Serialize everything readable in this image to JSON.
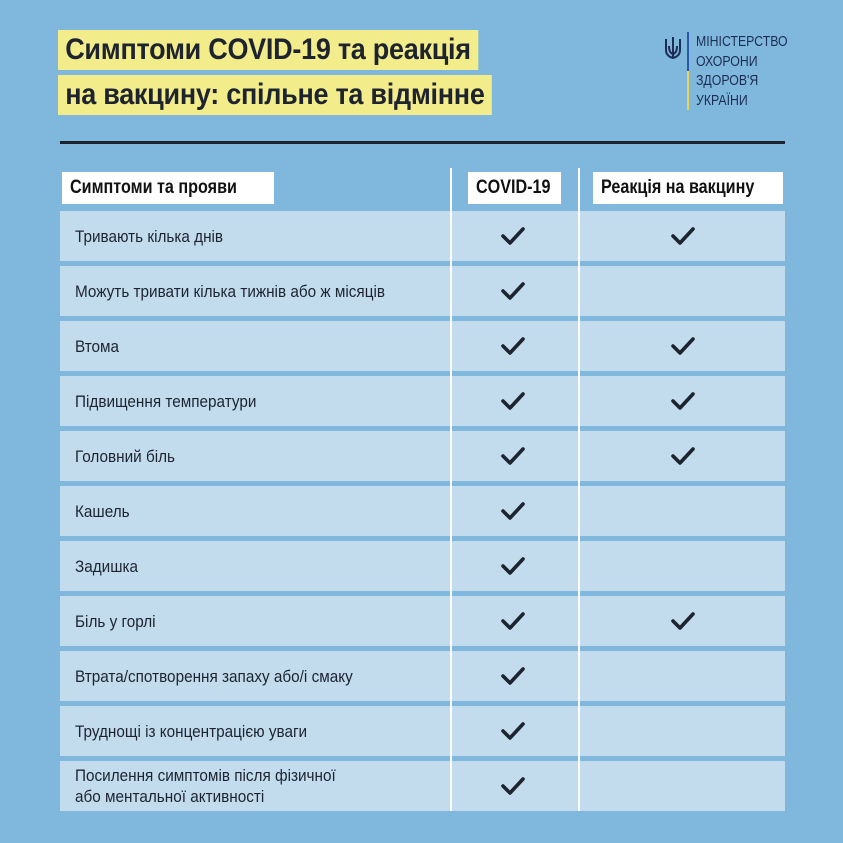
{
  "title": {
    "line1": "Симптоми COVID-19 та реакція",
    "line2": "на вакцину: спільне та відмінне"
  },
  "logo": {
    "lines": [
      "МІНІСТЕРСТВО",
      "ОХОРОНИ",
      "ЗДОРОВ'Я",
      "УКРАЇНИ"
    ],
    "icon": "trident-icon"
  },
  "table": {
    "headers": [
      "Симптоми та прояви",
      "COVID-19",
      "Реакція на вакцину"
    ],
    "rows": [
      {
        "label": "Тривають кілька днів",
        "covid": true,
        "vaccine": true
      },
      {
        "label": "Можуть тривати кілька тижнів або ж місяців",
        "covid": true,
        "vaccine": false
      },
      {
        "label": "Втома",
        "covid": true,
        "vaccine": true
      },
      {
        "label": "Підвищення температури",
        "covid": true,
        "vaccine": true
      },
      {
        "label": "Головний біль",
        "covid": true,
        "vaccine": true
      },
      {
        "label": "Кашель",
        "covid": true,
        "vaccine": false
      },
      {
        "label": "Задишка",
        "covid": true,
        "vaccine": false
      },
      {
        "label": "Біль у горлі",
        "covid": true,
        "vaccine": true
      },
      {
        "label": "Втрата/спотворення запаху або/і смаку",
        "covid": true,
        "vaccine": false
      },
      {
        "label": "Труднощі із концентрацією уваги",
        "covid": true,
        "vaccine": false
      },
      {
        "label": "Посилення симптомів після фізичної\nабо ментальної активності",
        "covid": true,
        "vaccine": false
      }
    ]
  },
  "colors": {
    "background": "#7fb8dc",
    "row": "#c2dcee",
    "highlight": "#f3ec8a",
    "text": "#1d2430"
  }
}
